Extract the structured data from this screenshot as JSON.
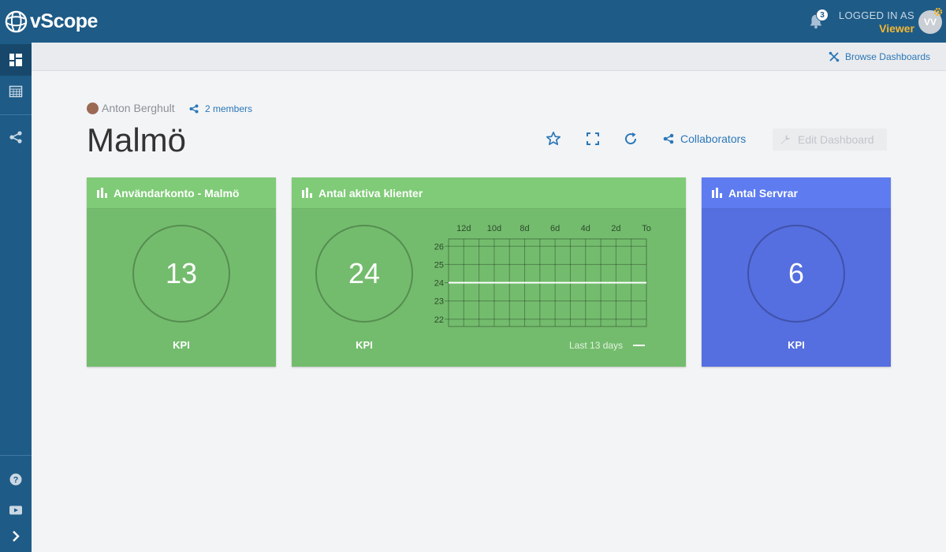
{
  "app": {
    "name": "vScope"
  },
  "header": {
    "notifications_count": "3",
    "login_label": "LOGGED IN AS",
    "role": "Viewer",
    "avatar_initials": "VV"
  },
  "sidebar": {
    "items": [
      {
        "icon": "dashboard-icon",
        "active": true
      },
      {
        "icon": "table-icon"
      },
      {
        "icon": "share-icon"
      },
      {
        "icon": "help-icon"
      },
      {
        "icon": "video-icon"
      },
      {
        "icon": "expand-icon"
      }
    ]
  },
  "subheader": {
    "browse_label": "Browse Dashboards"
  },
  "dashboard": {
    "owner": "Anton Berghult",
    "members": "2 members",
    "title": "Malmö",
    "collaborators_label": "Collaborators",
    "edit_label": "Edit Dashboard"
  },
  "widgets": [
    {
      "title": "Användarkonto - Malmö",
      "value": "13",
      "label": "KPI",
      "color": "#73bc6d"
    },
    {
      "title": "Antal aktiva klienter",
      "value": "24",
      "label": "KPI",
      "color": "#73bc6d",
      "legend": "Last 13 days"
    },
    {
      "title": "Antal Servrar",
      "value": "6",
      "label": "KPI",
      "color": "#556ee0"
    }
  ],
  "chart_data": {
    "type": "line",
    "x_tick_labels": [
      "12d",
      "10d",
      "8d",
      "6d",
      "4d",
      "2d",
      "To"
    ],
    "y_tick_labels": [
      "26",
      "25",
      "24",
      "23",
      "22"
    ],
    "ylim": [
      21.6,
      26.4
    ],
    "series": [
      {
        "values": [
          24,
          24,
          24,
          24,
          24,
          24,
          24,
          24,
          24,
          24,
          24,
          24,
          24,
          24
        ]
      }
    ],
    "grid": true
  }
}
